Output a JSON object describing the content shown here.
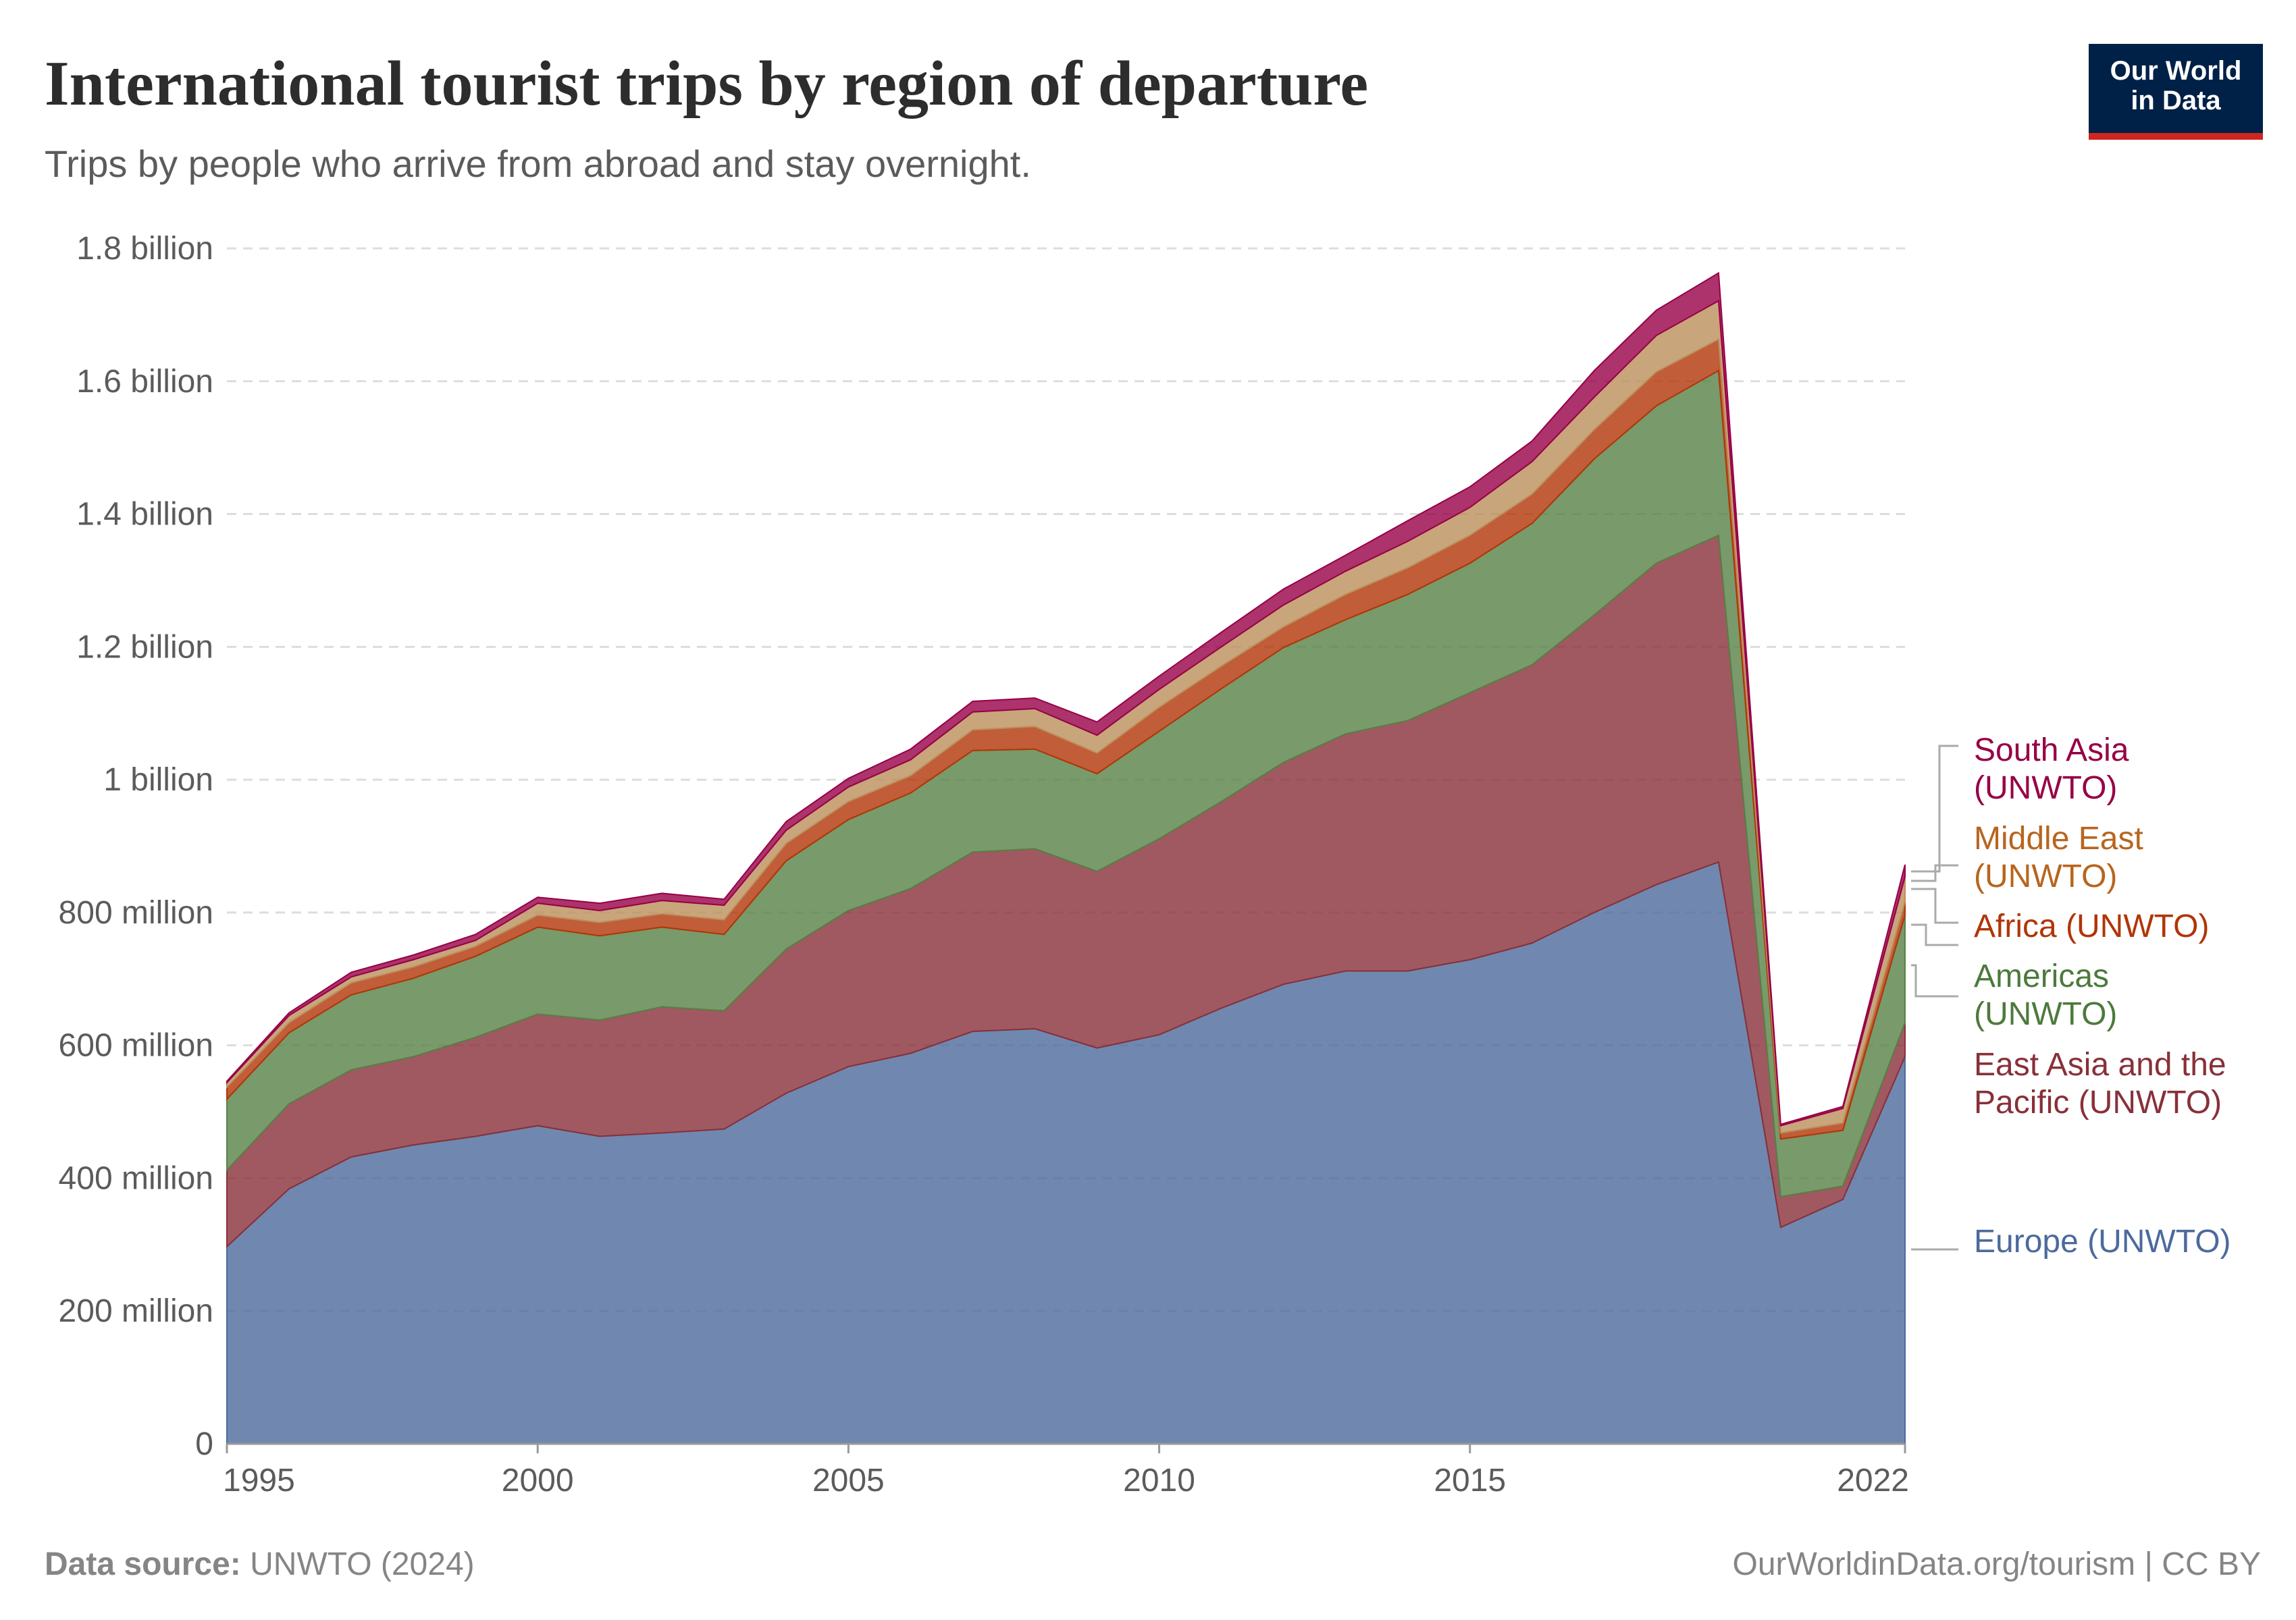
{
  "header": {
    "title": "International tourist trips by region of departure",
    "subtitle": "Trips by people who arrive from abroad and stay overnight.",
    "logo": "Our World in Data"
  },
  "footer": {
    "source_label": "Data source:",
    "source_value": "UNWTO (2024)",
    "credit": "OurWorldinData.org/tourism | CC BY"
  },
  "chart_data": {
    "type": "area",
    "stacked": true,
    "title": "International tourist trips by region of departure",
    "ylim": [
      0,
      1800000000
    ],
    "grid": "horizontal dashed",
    "legend": "right, inline labels",
    "y_ticks": [
      {
        "value": 0,
        "label": "0"
      },
      {
        "value": 200000000,
        "label": "200 million"
      },
      {
        "value": 400000000,
        "label": "400 million"
      },
      {
        "value": 600000000,
        "label": "600 million"
      },
      {
        "value": 800000000,
        "label": "800 million"
      },
      {
        "value": 1000000000,
        "label": "1 billion"
      },
      {
        "value": 1200000000,
        "label": "1.2 billion"
      },
      {
        "value": 1400000000,
        "label": "1.4 billion"
      },
      {
        "value": 1600000000,
        "label": "1.6 billion"
      },
      {
        "value": 1800000000,
        "label": "1.8 billion"
      }
    ],
    "x_ticks": [
      {
        "value": 1995,
        "label": "1995"
      },
      {
        "value": 2000,
        "label": "2000"
      },
      {
        "value": 2005,
        "label": "2005"
      },
      {
        "value": 2010,
        "label": "2010"
      },
      {
        "value": 2015,
        "label": "2015"
      },
      {
        "value": 2022,
        "label": "2022"
      }
    ],
    "x": [
      1995,
      1996,
      1997,
      1998,
      1999,
      2000,
      2001,
      2002,
      2003,
      2004,
      2005,
      2006,
      2007,
      2008,
      2009,
      2010,
      2011,
      2012,
      2013,
      2014,
      2015,
      2016,
      2017,
      2018,
      2019,
      2020,
      2021,
      2022
    ],
    "unit_note": "values in millions of trips",
    "series": [
      {
        "name": "Europe (UNWTO)",
        "color": "#4c6a9c",
        "label_color": "#4c6a9c",
        "values": [
          297,
          384,
          432,
          450,
          463,
          479,
          463,
          468,
          474,
          528,
          568,
          588,
          621,
          625,
          596,
          616,
          656,
          692,
          712,
          712,
          729,
          754,
          800,
          842,
          876,
          326,
          368,
          583
        ]
      },
      {
        "name": "East Asia and the Pacific (UNWTO)",
        "color": "#883039",
        "label_color": "#883039",
        "values": [
          115,
          128,
          131,
          133,
          149,
          168,
          175,
          190,
          178,
          217,
          235,
          248,
          270,
          271,
          266,
          295,
          311,
          334,
          357,
          377,
          402,
          419,
          448,
          484,
          492,
          46,
          20,
          51
        ]
      },
      {
        "name": "Americas (UNWTO)",
        "color": "#578145",
        "label_color": "#4c7a3c",
        "values": [
          107,
          107,
          113,
          118,
          122,
          131,
          127,
          120,
          115,
          133,
          137,
          144,
          153,
          150,
          147,
          162,
          170,
          173,
          172,
          190,
          195,
          213,
          235,
          237,
          248,
          87,
          84,
          162
        ]
      },
      {
        "name": "Africa (UNWTO)",
        "color": "#b13507",
        "label_color": "#b13507",
        "values": [
          18,
          15,
          18,
          17,
          15,
          18,
          20,
          20,
          22,
          26,
          27,
          26,
          31,
          34,
          31,
          36,
          34,
          31,
          38,
          40,
          42,
          44,
          44,
          51,
          47,
          9,
          11,
          20
        ]
      },
      {
        "name": "Middle East (UNWTO)",
        "color": "#bc8e5a",
        "label_color": "#b8651e",
        "values": [
          7,
          11,
          9,
          11,
          9,
          18,
          18,
          20,
          22,
          20,
          22,
          24,
          27,
          27,
          27,
          27,
          29,
          33,
          35,
          40,
          42,
          49,
          49,
          55,
          58,
          11,
          22,
          38
        ]
      },
      {
        "name": "South Asia (UNWTO)",
        "color": "#970046",
        "label_color": "#970046",
        "values": [
          2,
          4,
          7,
          7,
          9,
          9,
          11,
          11,
          9,
          13,
          13,
          16,
          16,
          16,
          20,
          20,
          22,
          24,
          24,
          31,
          31,
          31,
          40,
          38,
          42,
          2,
          3,
          18
        ]
      }
    ],
    "labels": {
      "south_asia": [
        "South Asia",
        "(UNWTO)"
      ],
      "middle_east": [
        "Middle East",
        "(UNWTO)"
      ],
      "africa": [
        "Africa (UNWTO)"
      ],
      "americas": [
        "Americas",
        "(UNWTO)"
      ],
      "east_asia": [
        "East Asia and the",
        "Pacific (UNWTO)"
      ],
      "europe": [
        "Europe (UNWTO)"
      ]
    }
  }
}
